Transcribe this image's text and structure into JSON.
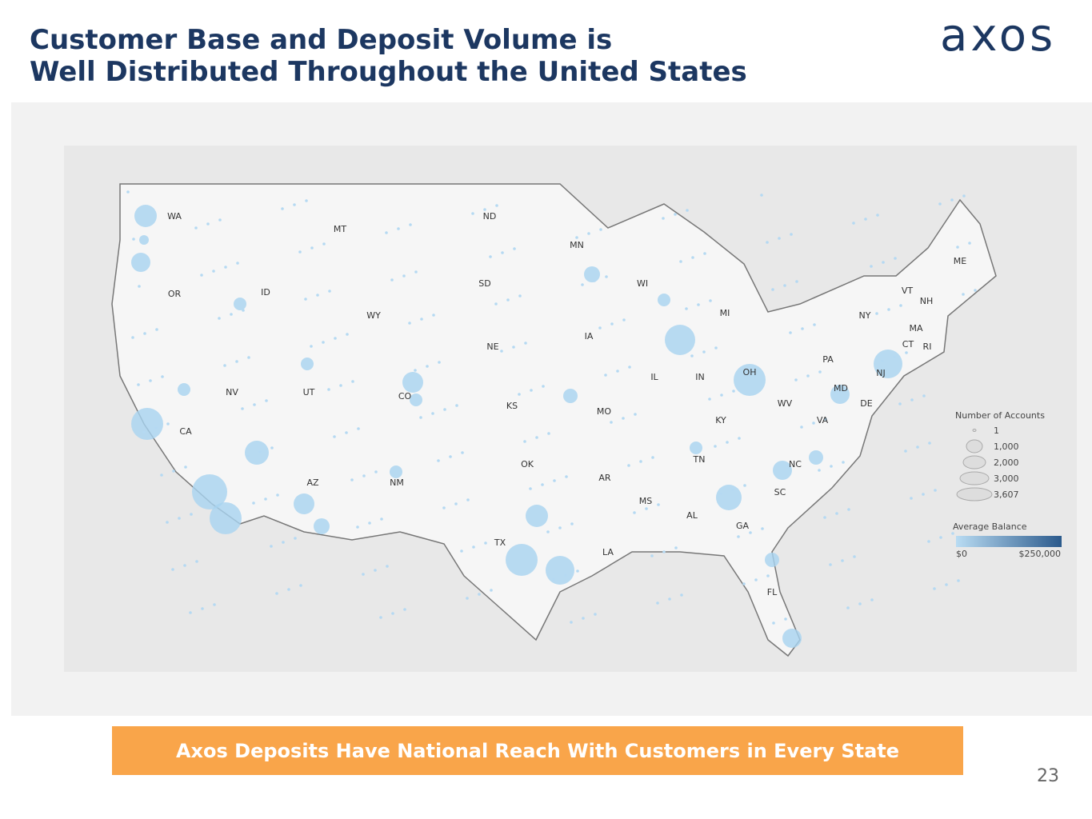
{
  "header": {
    "title_lines": [
      "Customer Base and Deposit Volume is",
      "Well Distributed Throughout the United States"
    ],
    "logo": "axos"
  },
  "map": {
    "states": [
      "WA",
      "OR",
      "CA",
      "NV",
      "ID",
      "MT",
      "WY",
      "UT",
      "AZ",
      "CO",
      "NM",
      "ND",
      "SD",
      "NE",
      "KS",
      "OK",
      "TX",
      "MN",
      "IA",
      "MO",
      "AR",
      "LA",
      "WI",
      "IL",
      "MS",
      "AL",
      "TN",
      "KY",
      "IN",
      "OH",
      "MI",
      "GA",
      "FL",
      "SC",
      "NC",
      "VA",
      "WV",
      "PA",
      "NY",
      "MD",
      "DE",
      "NJ",
      "CT",
      "RI",
      "MA",
      "VT",
      "NH",
      "ME"
    ],
    "legend": {
      "size_title": "Number of Accounts",
      "sizes": [
        "1",
        "1,000",
        "2,000",
        "3,000",
        "3,607"
      ],
      "color_title": "Average Balance",
      "color_min": "$0",
      "color_max": "$250,000"
    }
  },
  "banner": "Axos Deposits Have National Reach With Customers in Every State",
  "page_number": "23"
}
